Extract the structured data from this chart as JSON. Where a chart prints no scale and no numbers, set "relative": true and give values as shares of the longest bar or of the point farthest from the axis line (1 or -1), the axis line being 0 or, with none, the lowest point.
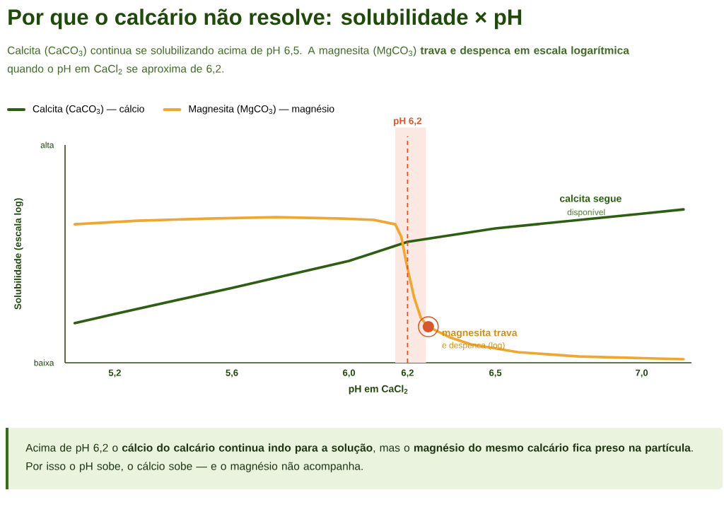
{
  "chart_data": {
    "type": "line",
    "title": "Por que o calcário não resolve: solubilidade × pH",
    "subtitle": "Calcita (CaCO$_{3}$) continua se solubilizando acima de pH 6,5. A magnesita (MgCO$_{3}$) **trava e despenca em escala logarítmica** quando o pH em CaCl$_{2}$ se aproxima de 6,2.",
    "xlabel": "pH em CaCl$_{2}$",
    "ylabel": "Solubilidade (escala log)",
    "relative": true,
    "xlim": [
      5.03,
      7.17
    ],
    "xticks": [
      {
        "value": 5.2,
        "label": "5,2"
      },
      {
        "value": 5.6,
        "label": "5,6"
      },
      {
        "value": 6.0,
        "label": "6,0"
      },
      {
        "value": 6.2,
        "label": "6,2"
      },
      {
        "value": 6.5,
        "label": "6,5"
      },
      {
        "value": 7.0,
        "label": "7,0"
      }
    ],
    "series": [
      {
        "name": "Calcita (CaCO$_{3}$) — cálcio",
        "color": "#2e5e12",
        "x": [
          5.063,
          5.2,
          5.6,
          6.0,
          6.2,
          6.5,
          7.0,
          7.143
        ],
        "values": [
          0.258,
          0.318,
          0.488,
          0.664,
          0.788,
          0.876,
          0.972,
          1.0
        ]
      },
      {
        "name": "Magnesita (MgCO$_{3}$) — magnésio",
        "color": "#f0a630",
        "x": [
          5.063,
          5.28,
          5.517,
          5.75,
          5.981,
          6.085,
          6.158,
          6.179,
          6.195,
          6.222,
          6.246,
          6.271,
          6.344,
          6.417,
          6.577,
          6.786,
          7.143
        ],
        "values": [
          0.903,
          0.926,
          0.94,
          0.949,
          0.94,
          0.931,
          0.903,
          0.82,
          0.659,
          0.429,
          0.29,
          0.235,
          0.166,
          0.12,
          0.069,
          0.041,
          0.023
        ]
      }
    ],
    "ref_lines": [
      {
        "axis": "x",
        "value": 6.2,
        "label": "pH 6,2",
        "color": "#d9572b",
        "line_style": "dashed"
      }
    ],
    "bands": [
      {
        "axis": "x",
        "from": 6.158,
        "to": 6.263,
        "color": "#fbe8e2"
      }
    ],
    "annotations": [
      "alta",
      "baixa",
      "calcita segue",
      "disponível",
      {
        "text": "magnesita trava",
        "x": 6.271,
        "y": 0.235
      },
      "e despenca (log)",
      "Acima de pH 6,2 o **cálcio do calcário continua indo para a solução**, mas o **magnésio do mesmo calcário fica preso na partícula**. Por isso o pH sobe, o cálcio sobe — e o magnésio não acompanha."
    ],
    "legend": "top left"
  }
}
